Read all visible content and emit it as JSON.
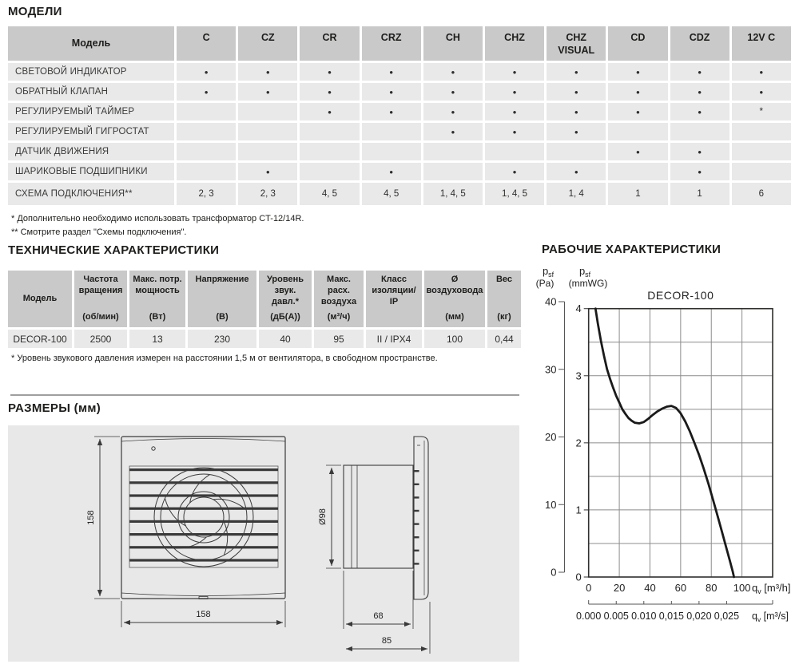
{
  "colors": {
    "table_header": "#c9c9c9",
    "table_row": "#e9e9e9",
    "panel": "#e8e8e8",
    "curve": "#1a1a1a",
    "grid": "#8c8c8c",
    "frame": "#2f2f2e",
    "draw_line": "#3a3a3a"
  },
  "models": {
    "heading": "МОДЕЛИ",
    "table": {
      "corner_label": "Модель",
      "columns": [
        "C",
        "CZ",
        "CR",
        "CRZ",
        "CH",
        "CHZ",
        "CHZ VISUAL",
        "CD",
        "CDZ",
        "12V C"
      ],
      "rows": [
        {
          "label": "СВЕТОВОЙ ИНДИКАТОР",
          "cells": [
            "•",
            "•",
            "•",
            "•",
            "•",
            "•",
            "•",
            "•",
            "•",
            "•"
          ]
        },
        {
          "label": "ОБРАТНЫЙ КЛАПАН",
          "cells": [
            "•",
            "•",
            "•",
            "•",
            "•",
            "•",
            "•",
            "•",
            "•",
            "•"
          ]
        },
        {
          "label": "РЕГУЛИРУЕМЫЙ ТАЙМЕР",
          "cells": [
            "",
            "",
            "•",
            "•",
            "•",
            "•",
            "•",
            "•",
            "•",
            "*"
          ]
        },
        {
          "label": "РЕГУЛИРУЕМЫЙ ГИГРОСТАТ",
          "cells": [
            "",
            "",
            "",
            "",
            "•",
            "•",
            "•",
            "",
            "",
            ""
          ]
        },
        {
          "label": "ДАТЧИК ДВИЖЕНИЯ",
          "cells": [
            "",
            "",
            "",
            "",
            "",
            "",
            "",
            "•",
            "•",
            ""
          ]
        },
        {
          "label": "ШАРИКОВЫЕ ПОДШИПНИКИ",
          "cells": [
            "",
            "•",
            "",
            "•",
            "",
            "•",
            "•",
            "",
            "•",
            ""
          ]
        },
        {
          "label": "СХЕМА ПОДКЛЮЧЕНИЯ**",
          "cells": [
            "2, 3",
            "2, 3",
            "4, 5",
            "4, 5",
            "1, 4, 5",
            "1, 4, 5",
            "1, 4",
            "1",
            "1",
            "6"
          ]
        }
      ]
    },
    "footnotes": [
      "* Дополнительно необходимо использовать трансформатор CT-12/14R.",
      "** Смотрите раздел \"Схемы подключения\"."
    ]
  },
  "tech": {
    "heading": "ТЕХНИЧЕСКИЕ ХАРАКТЕРИСТИКИ",
    "columns": [
      {
        "title": "Модель",
        "unit": ""
      },
      {
        "title": "Частота вращения",
        "unit": "(об/мин)"
      },
      {
        "title": "Макс. потр. мощность",
        "unit": "(Вт)"
      },
      {
        "title": "Напряжение",
        "unit": "(В)"
      },
      {
        "title": "Уровень звук. давл.*",
        "unit": "(дБ(А))"
      },
      {
        "title": "Макс. расх. воздуха",
        "unit": "(м³/ч)"
      },
      {
        "title": "Класс изоляции/ IP",
        "unit": ""
      },
      {
        "title": "Ø воздуховода",
        "unit": "(мм)"
      },
      {
        "title": "Вес",
        "unit": "(кг)"
      }
    ],
    "row": [
      "DECOR-100",
      "2500",
      "13",
      "230",
      "40",
      "95",
      "II / IPX4",
      "100",
      "0,44"
    ],
    "footnote": "* Уровень звукового давления измерен на расстоянии 1,5 м от вентилятора, в свободном пространстве."
  },
  "dimensions": {
    "heading": "РАЗМЕРЫ (мм)",
    "labels": {
      "front_height": "158",
      "front_width": "158",
      "duct_diameter": "Ø98",
      "duct_length": "68",
      "total_depth": "85"
    }
  },
  "chart": {
    "heading": "РАБОЧИЕ ХАРАКТЕРИСТИКИ",
    "title": "DECOR-100",
    "axis_pa": {
      "base": "p",
      "sub": "sf",
      "unit": "(Pa)",
      "ticks": [
        40,
        30,
        20,
        10,
        0
      ]
    },
    "axis_mmwg": {
      "base": "p",
      "sub": "sf",
      "unit": "(mmWG)",
      "ticks": [
        4,
        3,
        2,
        1,
        0
      ]
    },
    "x_primary": {
      "base": "q",
      "sub": "v",
      "unit": " [m³/h]",
      "ticks": [
        0,
        20,
        40,
        60,
        80,
        100
      ]
    },
    "x_secondary": {
      "base": "q",
      "sub": "v",
      "unit": " [m³/s]",
      "tick_labels": [
        "0.000",
        "0.005",
        "0.010",
        "0,015",
        "0,020",
        "0,025"
      ],
      "tick_positions": [
        0,
        18,
        36,
        54,
        72,
        90
      ]
    }
  },
  "chart_data": {
    "type": "line",
    "title": "DECOR-100",
    "xlabel": "qv [m³/h] (secondary scale: qv [m³/s])",
    "ylabel": "psf (Pa) / psf (mmWG)",
    "x_range_m3h": [
      0,
      120
    ],
    "y_range_mmwg": [
      0,
      4
    ],
    "y_range_pa": [
      0,
      40
    ],
    "grid": true,
    "x_gridline_step": 20,
    "y_gridline_step": 0.5,
    "series": [
      {
        "name": "DECOR-100",
        "x_unit": "m³/h",
        "y_unit": "mmWG",
        "points": [
          [
            4.5,
            4.0
          ],
          [
            6,
            3.78
          ],
          [
            8,
            3.52
          ],
          [
            10,
            3.3
          ],
          [
            12,
            3.1
          ],
          [
            14,
            2.95
          ],
          [
            16,
            2.82
          ],
          [
            18,
            2.7
          ],
          [
            20,
            2.6
          ],
          [
            22,
            2.5
          ],
          [
            24,
            2.43
          ],
          [
            26,
            2.37
          ],
          [
            28,
            2.33
          ],
          [
            30,
            2.3
          ],
          [
            33,
            2.29
          ],
          [
            36,
            2.31
          ],
          [
            39,
            2.36
          ],
          [
            42,
            2.42
          ],
          [
            45,
            2.47
          ],
          [
            48,
            2.51
          ],
          [
            51,
            2.54
          ],
          [
            54,
            2.55
          ],
          [
            57,
            2.52
          ],
          [
            60,
            2.44
          ],
          [
            63,
            2.32
          ],
          [
            66,
            2.17
          ],
          [
            69,
            2.0
          ],
          [
            72,
            1.82
          ],
          [
            75,
            1.62
          ],
          [
            78,
            1.4
          ],
          [
            81,
            1.16
          ],
          [
            84,
            0.92
          ],
          [
            87,
            0.67
          ],
          [
            90,
            0.42
          ],
          [
            92,
            0.25
          ],
          [
            94,
            0.08
          ],
          [
            94.8,
            0.0
          ]
        ]
      }
    ]
  }
}
